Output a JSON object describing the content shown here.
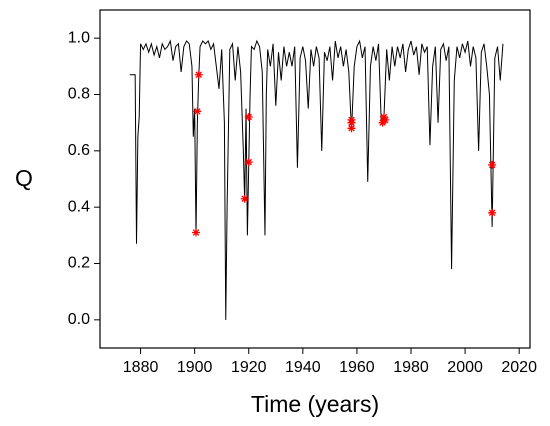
{
  "chart_data": {
    "type": "line",
    "xlabel": "Time (years)",
    "ylabel": "Q",
    "xlim": [
      1865,
      2024
    ],
    "ylim": [
      -0.1,
      1.1
    ],
    "xticks": [
      1880,
      1900,
      1920,
      1940,
      1960,
      1980,
      2000,
      2020
    ],
    "yticks": [
      {
        "value": 0,
        "label": "0.0"
      },
      0.2,
      0.4,
      0.6,
      0.8,
      {
        "value": 1,
        "label": "1.0"
      }
    ],
    "line_color": "#000000",
    "x": [
      1876,
      1877,
      1878,
      1878.5,
      1879,
      1879.5,
      1880,
      1881,
      1882,
      1883,
      1884,
      1885,
      1886,
      1887,
      1888,
      1889,
      1890,
      1891,
      1892,
      1893,
      1894,
      1895,
      1896,
      1897,
      1898,
      1899,
      1899.5,
      1900,
      1900.5,
      1901,
      1901.5,
      1902,
      1903,
      1904,
      1905,
      1906,
      1907,
      1908,
      1909,
      1910,
      1911,
      1911.5,
      1912,
      1913,
      1914,
      1915,
      1916,
      1917,
      1918,
      1918.5,
      1919,
      1919.5,
      1920,
      1920.5,
      1921,
      1922,
      1923,
      1924,
      1925,
      1926,
      1926.5,
      1927,
      1928,
      1929,
      1930,
      1931,
      1932,
      1933,
      1934,
      1935,
      1936,
      1937,
      1938,
      1939,
      1940,
      1941,
      1942,
      1943,
      1944,
      1945,
      1946,
      1947,
      1948,
      1949,
      1950,
      1951,
      1952,
      1953,
      1954,
      1955,
      1956,
      1957,
      1958,
      1959,
      1960,
      1961,
      1962,
      1963,
      1964,
      1965,
      1966,
      1967,
      1968,
      1969,
      1970,
      1971,
      1972,
      1973,
      1974,
      1975,
      1976,
      1977,
      1978,
      1979,
      1980,
      1981,
      1982,
      1983,
      1984,
      1985,
      1986,
      1987,
      1988,
      1989,
      1990,
      1991,
      1992,
      1993,
      1994,
      1995,
      1996,
      1997,
      1998,
      1999,
      2000,
      2001,
      2002,
      2003,
      2004,
      2005,
      2006,
      2007,
      2008,
      2009,
      2010,
      2011,
      2012,
      2013,
      2014
    ],
    "values": [
      0.87,
      0.87,
      0.87,
      0.27,
      0.65,
      0.72,
      0.98,
      0.96,
      0.98,
      0.95,
      0.98,
      0.94,
      0.97,
      0.93,
      0.98,
      0.96,
      0.97,
      0.99,
      0.92,
      0.97,
      0.98,
      0.88,
      0.97,
      0.99,
      0.98,
      0.9,
      0.65,
      0.75,
      0.3,
      0.7,
      0.86,
      0.97,
      0.99,
      0.98,
      0.99,
      0.96,
      0.98,
      0.9,
      0.82,
      0.96,
      0.7,
      0.0,
      0.4,
      0.96,
      0.98,
      0.85,
      0.97,
      0.88,
      0.6,
      0.42,
      0.75,
      0.3,
      0.55,
      0.8,
      0.97,
      0.96,
      0.99,
      0.97,
      0.88,
      0.3,
      0.8,
      0.96,
      0.9,
      0.98,
      0.76,
      0.95,
      0.85,
      0.97,
      0.9,
      0.95,
      0.9,
      0.97,
      0.54,
      0.93,
      0.97,
      0.92,
      0.75,
      0.96,
      0.9,
      0.97,
      0.93,
      0.6,
      0.95,
      0.92,
      0.97,
      0.85,
      0.99,
      0.93,
      0.97,
      0.9,
      0.96,
      0.88,
      0.67,
      0.9,
      0.97,
      0.99,
      0.93,
      0.97,
      0.49,
      0.9,
      0.97,
      0.92,
      0.98,
      0.7,
      0.72,
      0.96,
      0.85,
      0.97,
      0.9,
      0.97,
      0.93,
      0.98,
      0.88,
      0.96,
      0.99,
      0.94,
      0.97,
      0.87,
      0.98,
      0.95,
      0.97,
      0.62,
      0.9,
      0.97,
      0.7,
      0.96,
      0.98,
      0.92,
      0.97,
      0.18,
      0.85,
      0.97,
      0.93,
      0.98,
      0.95,
      0.99,
      0.9,
      0.97,
      0.93,
      0.6,
      0.95,
      0.98,
      0.9,
      0.8,
      0.33,
      0.93,
      0.97,
      0.85,
      0.98
    ],
    "markers": {
      "color": "#ff0000",
      "x": [
        1900.5,
        1901,
        1901.5,
        1918.5,
        1920,
        1920,
        1958,
        1958,
        1958,
        1969.5,
        1970,
        1970.5,
        2010,
        2010
      ],
      "values": [
        0.31,
        0.74,
        0.87,
        0.43,
        0.56,
        0.72,
        0.68,
        0.7,
        0.71,
        0.7,
        0.72,
        0.71,
        0.55,
        0.38
      ]
    }
  }
}
